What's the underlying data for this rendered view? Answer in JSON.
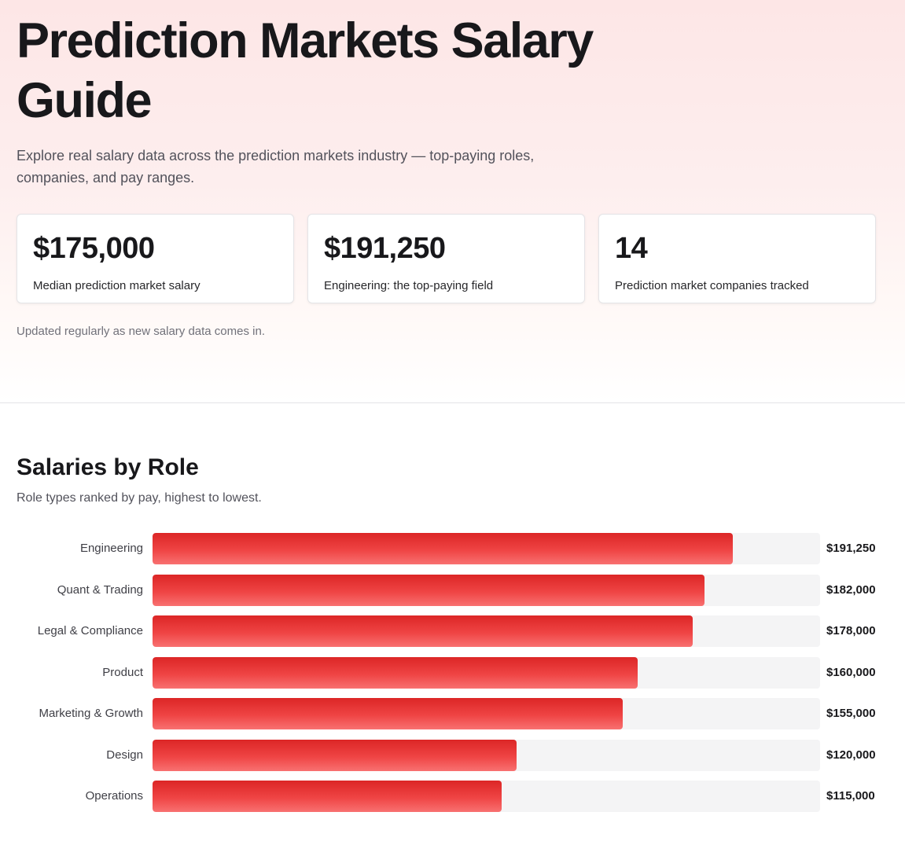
{
  "hero": {
    "title": "Prediction Markets Salary Guide",
    "subtitle": "Explore real salary data across the prediction markets industry — top-paying roles, companies, and pay ranges.",
    "stats": [
      {
        "value": "$175,000",
        "label": "Median prediction market salary"
      },
      {
        "value": "$191,250",
        "label": "Engineering: the top-paying field"
      },
      {
        "value": "14",
        "label": "Prediction market companies tracked"
      }
    ],
    "note": "Updated regularly as new salary data comes in."
  },
  "roles_section": {
    "title": "Salaries by Role",
    "subtitle": "Role types ranked by pay, highest to lowest."
  },
  "chart_data": {
    "type": "bar",
    "orientation": "horizontal",
    "categories": [
      "Engineering",
      "Quant & Trading",
      "Legal & Compliance",
      "Product",
      "Marketing & Growth",
      "Design",
      "Operations"
    ],
    "values": [
      191250,
      182000,
      178000,
      160000,
      155000,
      120000,
      115000
    ],
    "value_labels": [
      "$191,250",
      "$182,000",
      "$178,000",
      "$160,000",
      "$155,000",
      "$120,000",
      "$115,000"
    ],
    "xlim": [
      0,
      220000
    ],
    "colors": {
      "bar": "#ef4444",
      "bar_dark": "#dc2626",
      "track": "#f4f4f5"
    }
  }
}
